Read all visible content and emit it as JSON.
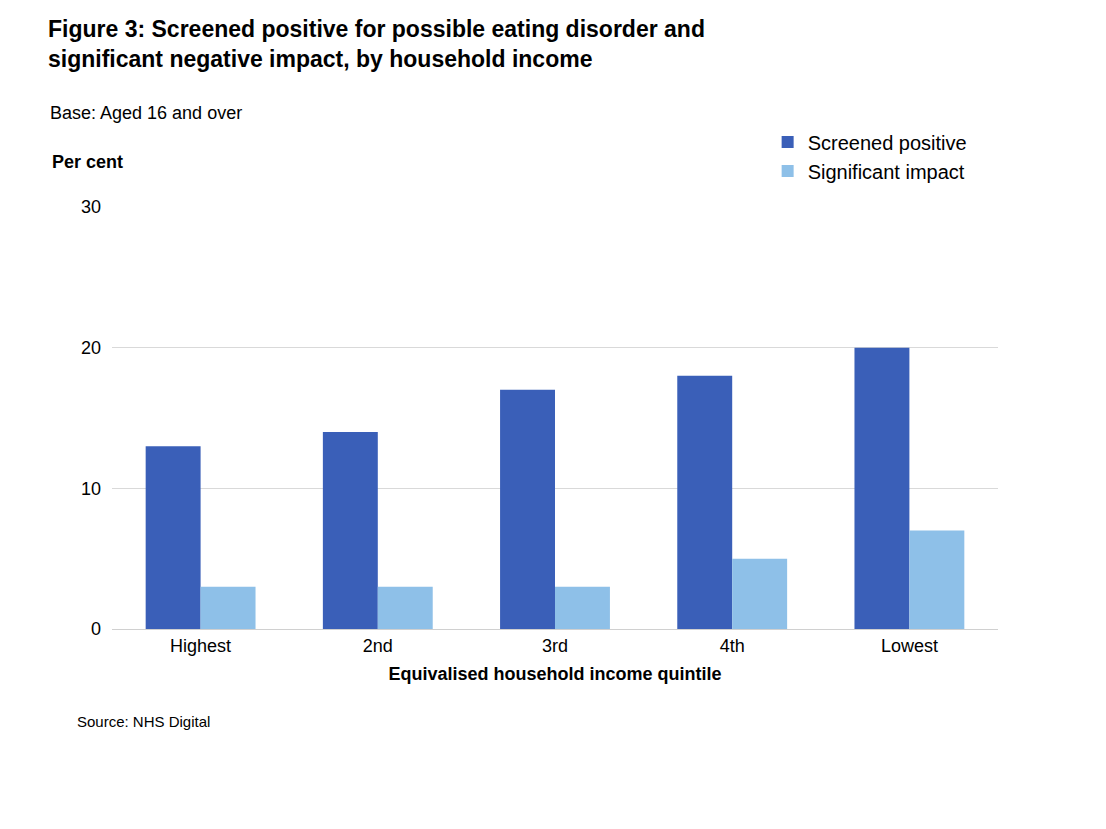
{
  "chart_data": {
    "type": "bar",
    "title": "Figure 3: Screened positive for possible eating disorder and\nsignificant negative impact, by household income",
    "subtitle": "Base: Aged 16 and over",
    "y_label": "Per cent",
    "x_label": "Equivalised household income quintile",
    "annotations": [
      "Source: NHS Digital"
    ],
    "categories": [
      "Highest",
      "2nd",
      "3rd",
      "4th",
      "Lowest"
    ],
    "series": [
      {
        "name": "Screened positive",
        "color": "#3a5fb8",
        "values": [
          13,
          14,
          17,
          18,
          20
        ]
      },
      {
        "name": "Significant impact",
        "color": "#8ec0e8",
        "values": [
          3,
          3,
          3,
          5,
          7
        ]
      }
    ],
    "ylim": [
      0,
      30
    ],
    "yticks": [
      0,
      10,
      20,
      30
    ],
    "grid": true,
    "legend": "top right"
  }
}
